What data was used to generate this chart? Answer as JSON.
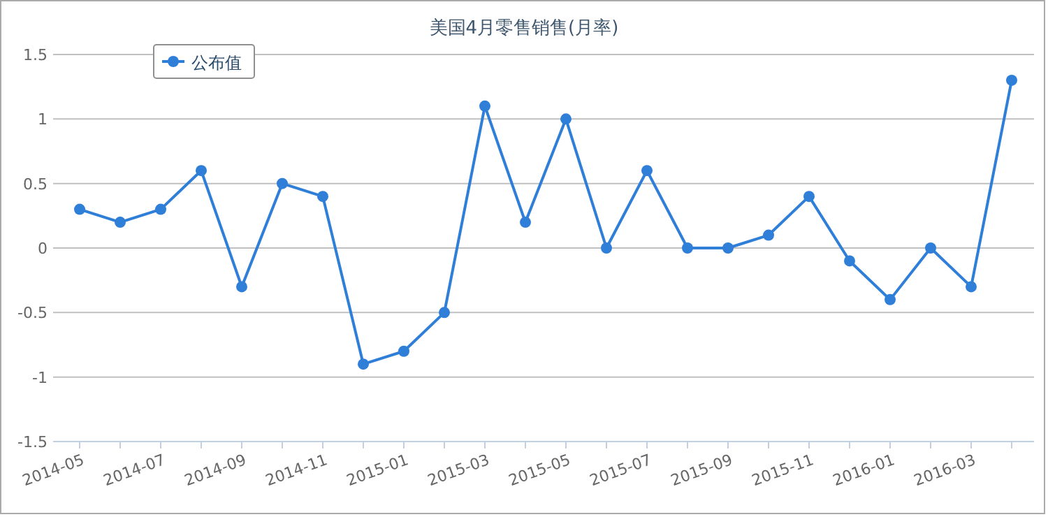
{
  "chart_data": {
    "type": "line",
    "title": "美国4月零售销售(月率)",
    "categories": [
      "2014-05",
      null,
      "2014-07",
      null,
      "2014-09",
      null,
      "2014-11",
      null,
      "2015-01",
      null,
      "2015-03",
      null,
      "2015-05",
      null,
      "2015-07",
      null,
      "2015-09",
      null,
      "2015-11",
      null,
      "2016-01",
      null,
      "2016-03",
      null
    ],
    "series": [
      {
        "name": "公布值",
        "color": "#2f7ed8",
        "values": [
          0.3,
          0.2,
          0.3,
          0.6,
          -0.3,
          0.5,
          0.4,
          -0.9,
          -0.8,
          -0.5,
          1.1,
          0.2,
          1.0,
          0.0,
          0.6,
          0.0,
          0.0,
          0.1,
          0.4,
          -0.1,
          -0.4,
          0.0,
          -0.3,
          1.3
        ]
      }
    ],
    "ylim": [
      -1.5,
      1.5
    ],
    "yticks": [
      1.5,
      1,
      0.5,
      0,
      -0.5,
      -1,
      -1.5
    ],
    "grid": "y",
    "legend": "top left",
    "marker": "circle",
    "line_style": "solid"
  }
}
